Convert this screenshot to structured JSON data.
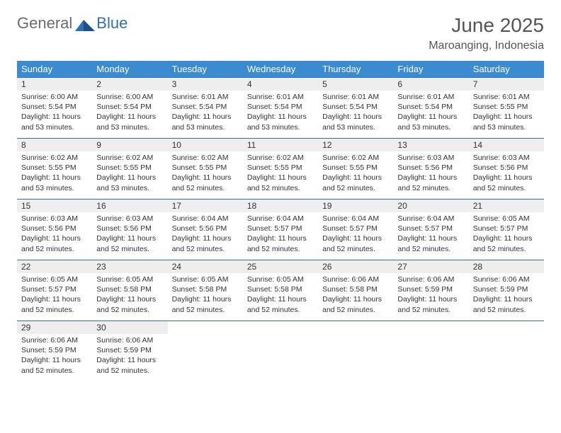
{
  "brand": {
    "general": "General",
    "blue": "Blue",
    "logo_color": "#2f6fb5",
    "gray": "#6b6b6b"
  },
  "title": {
    "month": "June 2025",
    "location": "Maroanging, Indonesia"
  },
  "colors": {
    "header_bg": "#3b8bd0",
    "header_fg": "#ffffff",
    "rule": "#2f6fb5",
    "daynum_bg": "#eeeeee",
    "text": "#333333"
  },
  "daynames": [
    "Sunday",
    "Monday",
    "Tuesday",
    "Wednesday",
    "Thursday",
    "Friday",
    "Saturday"
  ],
  "weeks": [
    [
      {
        "n": "1",
        "sr": "Sunrise: 6:00 AM",
        "ss": "Sunset: 5:54 PM",
        "dl": "Daylight: 11 hours and 53 minutes."
      },
      {
        "n": "2",
        "sr": "Sunrise: 6:00 AM",
        "ss": "Sunset: 5:54 PM",
        "dl": "Daylight: 11 hours and 53 minutes."
      },
      {
        "n": "3",
        "sr": "Sunrise: 6:01 AM",
        "ss": "Sunset: 5:54 PM",
        "dl": "Daylight: 11 hours and 53 minutes."
      },
      {
        "n": "4",
        "sr": "Sunrise: 6:01 AM",
        "ss": "Sunset: 5:54 PM",
        "dl": "Daylight: 11 hours and 53 minutes."
      },
      {
        "n": "5",
        "sr": "Sunrise: 6:01 AM",
        "ss": "Sunset: 5:54 PM",
        "dl": "Daylight: 11 hours and 53 minutes."
      },
      {
        "n": "6",
        "sr": "Sunrise: 6:01 AM",
        "ss": "Sunset: 5:54 PM",
        "dl": "Daylight: 11 hours and 53 minutes."
      },
      {
        "n": "7",
        "sr": "Sunrise: 6:01 AM",
        "ss": "Sunset: 5:55 PM",
        "dl": "Daylight: 11 hours and 53 minutes."
      }
    ],
    [
      {
        "n": "8",
        "sr": "Sunrise: 6:02 AM",
        "ss": "Sunset: 5:55 PM",
        "dl": "Daylight: 11 hours and 53 minutes."
      },
      {
        "n": "9",
        "sr": "Sunrise: 6:02 AM",
        "ss": "Sunset: 5:55 PM",
        "dl": "Daylight: 11 hours and 53 minutes."
      },
      {
        "n": "10",
        "sr": "Sunrise: 6:02 AM",
        "ss": "Sunset: 5:55 PM",
        "dl": "Daylight: 11 hours and 52 minutes."
      },
      {
        "n": "11",
        "sr": "Sunrise: 6:02 AM",
        "ss": "Sunset: 5:55 PM",
        "dl": "Daylight: 11 hours and 52 minutes."
      },
      {
        "n": "12",
        "sr": "Sunrise: 6:02 AM",
        "ss": "Sunset: 5:55 PM",
        "dl": "Daylight: 11 hours and 52 minutes."
      },
      {
        "n": "13",
        "sr": "Sunrise: 6:03 AM",
        "ss": "Sunset: 5:56 PM",
        "dl": "Daylight: 11 hours and 52 minutes."
      },
      {
        "n": "14",
        "sr": "Sunrise: 6:03 AM",
        "ss": "Sunset: 5:56 PM",
        "dl": "Daylight: 11 hours and 52 minutes."
      }
    ],
    [
      {
        "n": "15",
        "sr": "Sunrise: 6:03 AM",
        "ss": "Sunset: 5:56 PM",
        "dl": "Daylight: 11 hours and 52 minutes."
      },
      {
        "n": "16",
        "sr": "Sunrise: 6:03 AM",
        "ss": "Sunset: 5:56 PM",
        "dl": "Daylight: 11 hours and 52 minutes."
      },
      {
        "n": "17",
        "sr": "Sunrise: 6:04 AM",
        "ss": "Sunset: 5:56 PM",
        "dl": "Daylight: 11 hours and 52 minutes."
      },
      {
        "n": "18",
        "sr": "Sunrise: 6:04 AM",
        "ss": "Sunset: 5:57 PM",
        "dl": "Daylight: 11 hours and 52 minutes."
      },
      {
        "n": "19",
        "sr": "Sunrise: 6:04 AM",
        "ss": "Sunset: 5:57 PM",
        "dl": "Daylight: 11 hours and 52 minutes."
      },
      {
        "n": "20",
        "sr": "Sunrise: 6:04 AM",
        "ss": "Sunset: 5:57 PM",
        "dl": "Daylight: 11 hours and 52 minutes."
      },
      {
        "n": "21",
        "sr": "Sunrise: 6:05 AM",
        "ss": "Sunset: 5:57 PM",
        "dl": "Daylight: 11 hours and 52 minutes."
      }
    ],
    [
      {
        "n": "22",
        "sr": "Sunrise: 6:05 AM",
        "ss": "Sunset: 5:57 PM",
        "dl": "Daylight: 11 hours and 52 minutes."
      },
      {
        "n": "23",
        "sr": "Sunrise: 6:05 AM",
        "ss": "Sunset: 5:58 PM",
        "dl": "Daylight: 11 hours and 52 minutes."
      },
      {
        "n": "24",
        "sr": "Sunrise: 6:05 AM",
        "ss": "Sunset: 5:58 PM",
        "dl": "Daylight: 11 hours and 52 minutes."
      },
      {
        "n": "25",
        "sr": "Sunrise: 6:05 AM",
        "ss": "Sunset: 5:58 PM",
        "dl": "Daylight: 11 hours and 52 minutes."
      },
      {
        "n": "26",
        "sr": "Sunrise: 6:06 AM",
        "ss": "Sunset: 5:58 PM",
        "dl": "Daylight: 11 hours and 52 minutes."
      },
      {
        "n": "27",
        "sr": "Sunrise: 6:06 AM",
        "ss": "Sunset: 5:59 PM",
        "dl": "Daylight: 11 hours and 52 minutes."
      },
      {
        "n": "28",
        "sr": "Sunrise: 6:06 AM",
        "ss": "Sunset: 5:59 PM",
        "dl": "Daylight: 11 hours and 52 minutes."
      }
    ],
    [
      {
        "n": "29",
        "sr": "Sunrise: 6:06 AM",
        "ss": "Sunset: 5:59 PM",
        "dl": "Daylight: 11 hours and 52 minutes."
      },
      {
        "n": "30",
        "sr": "Sunrise: 6:06 AM",
        "ss": "Sunset: 5:59 PM",
        "dl": "Daylight: 11 hours and 52 minutes."
      },
      null,
      null,
      null,
      null,
      null
    ]
  ]
}
